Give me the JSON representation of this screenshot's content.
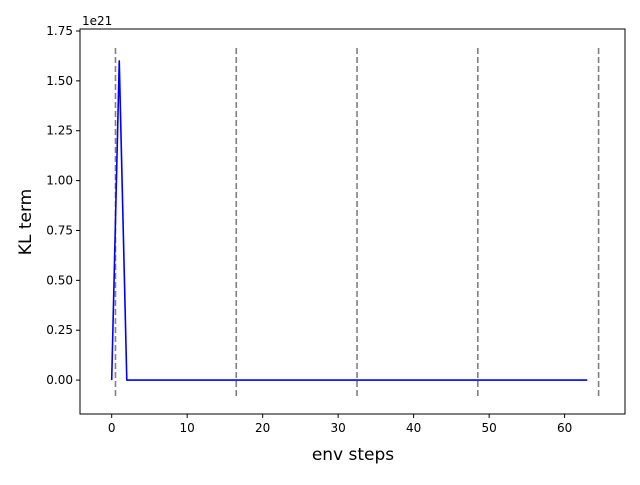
{
  "chart_data": {
    "type": "line",
    "title": "",
    "xlabel": "env steps",
    "ylabel": "KL term",
    "y_offset_label": "1e21",
    "xlim": [
      -4.2,
      68
    ],
    "ylim": [
      -0.17,
      1.76
    ],
    "y_scale_note": "values in units of 1e21",
    "x_ticks": [
      0,
      10,
      20,
      30,
      40,
      50,
      60
    ],
    "x_tick_labels": [
      "0",
      "10",
      "20",
      "30",
      "40",
      "50",
      "60"
    ],
    "y_ticks": [
      0.0,
      0.25,
      0.5,
      0.75,
      1.0,
      1.25,
      1.5,
      1.75
    ],
    "y_tick_labels": [
      "0.00",
      "0.25",
      "0.50",
      "0.75",
      "1.00",
      "1.25",
      "1.50",
      "1.75"
    ],
    "series": [
      {
        "color": "#0000ff",
        "x": [
          0,
          1,
          2,
          3,
          63
        ],
        "y": [
          0.0,
          1.6,
          0.0,
          0.0,
          0.0
        ]
      }
    ],
    "vlines": {
      "x": [
        0.5,
        16.5,
        32.5,
        48.5,
        64.5
      ],
      "color": "#808080",
      "style": "dashed",
      "y_range": [
        -0.08,
        1.68
      ]
    },
    "grid": false,
    "legend": "none"
  }
}
